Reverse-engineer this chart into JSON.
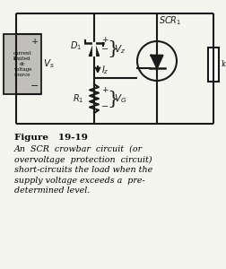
{
  "title": "Figure   19-19",
  "caption_lines": [
    "An  SCR  crowbar  circuit  (or",
    "overvoltage  protection  circuit)",
    "short-circuits the load when the",
    "supply voltage exceeds a  pre-",
    "determined level."
  ],
  "bg_color": "#f5f5f0",
  "circuit_color": "#1a1a1a",
  "source_box_color": "#c0bfba",
  "source_text": "current\nlimited\ndc\nvoltage\nsource",
  "figsize": [
    2.52,
    3.0
  ],
  "dpi": 100
}
